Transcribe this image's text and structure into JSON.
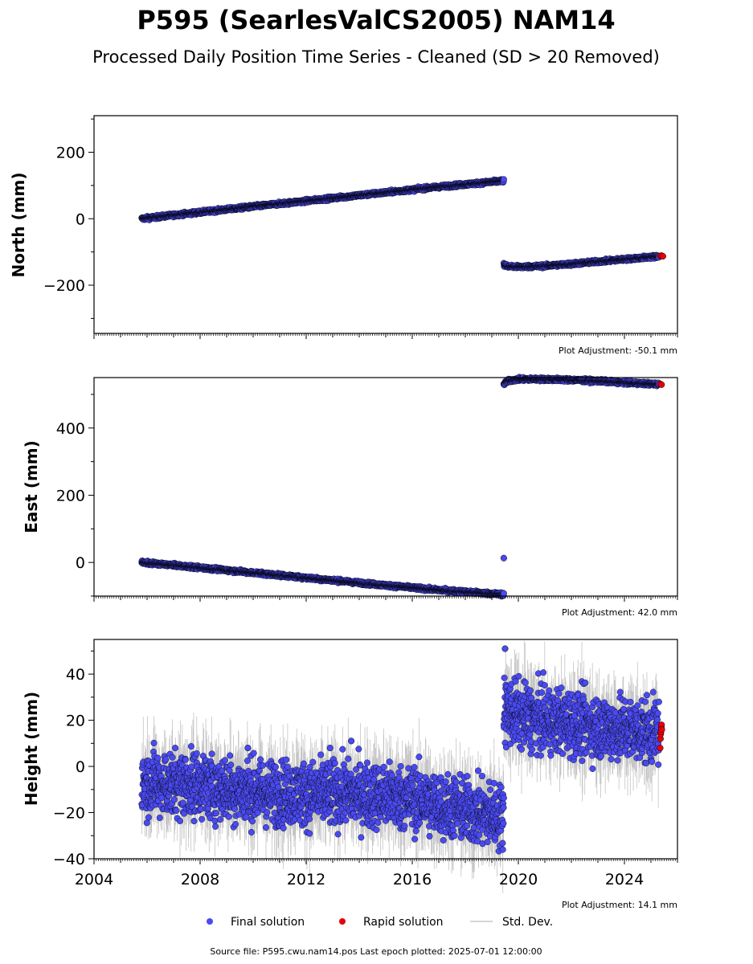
{
  "title": "P595 (SearlesValCS2005) NAM14",
  "subtitle": "Processed Daily Position Time Series - Cleaned (SD > 20 Removed)",
  "source_note": "Source file: P595.cwu.nam14.pos  Last epoch plotted: 2025-07-01 12:00:00",
  "legend": {
    "final": "Final solution",
    "rapid": "Rapid solution",
    "std": "Std. Dev."
  },
  "colors": {
    "final": "#4a4af0",
    "rapid": "#e8000b",
    "std": "#bdbdbd",
    "edge": "#000000"
  },
  "chart_data": [
    {
      "type": "scatter",
      "ylabel": "North (mm)",
      "adjustment": "Plot Adjustment: -50.1 mm",
      "xlim": [
        2004,
        2026
      ],
      "ylim": [
        -345,
        310
      ],
      "yticks": [
        -200,
        0,
        200
      ],
      "ytick_labels": [
        "−200",
        "0",
        "200"
      ],
      "grid": false,
      "show_x_tick_labels": false,
      "series": [
        {
          "role": "final",
          "segments": [
            {
              "x": [
                2005.8,
                2007,
                2009,
                2011,
                2013,
                2015,
                2017,
                2019.45
              ],
              "y": [
                0,
                11,
                28,
                45,
                62,
                79,
                96,
                114
              ]
            },
            {
              "x": [
                2019.45,
                2019.6,
                2020,
                2021,
                2022,
                2023,
                2024,
                2025.3
              ],
              "y": [
                -138,
                -143,
                -145,
                -142,
                -136,
                -129,
                -122,
                -113
              ]
            }
          ],
          "noise": 2.5
        },
        {
          "role": "rapid",
          "x": [
            2025.35,
            2025.4,
            2025.45
          ],
          "y": [
            -112,
            -111,
            -113
          ]
        }
      ]
    },
    {
      "type": "scatter",
      "ylabel": "East (mm)",
      "adjustment": "Plot Adjustment: 42.0 mm",
      "xlim": [
        2004,
        2026
      ],
      "ylim": [
        -100,
        550
      ],
      "yticks": [
        0,
        200,
        400
      ],
      "ytick_labels": [
        "0",
        "200",
        "400"
      ],
      "grid": false,
      "show_x_tick_labels": false,
      "series": [
        {
          "role": "final",
          "segments": [
            {
              "x": [
                2005.8,
                2007,
                2009,
                2011,
                2013,
                2015,
                2017,
                2019.45
              ],
              "y": [
                0,
                -8,
                -23,
                -38,
                -53,
                -68,
                -82,
                -95
              ]
            },
            {
              "x": [
                2019.45,
                2019.6,
                2020,
                2021,
                2022,
                2023,
                2024,
                2025.3
              ],
              "y": [
                530,
                540,
                545,
                545,
                543,
                540,
                535,
                530
              ]
            }
          ],
          "noise": 2.5
        },
        {
          "role": "final_extra",
          "x": [
            2019.45
          ],
          "y": [
            13
          ]
        },
        {
          "role": "rapid",
          "x": [
            2025.35,
            2025.4
          ],
          "y": [
            531,
            529
          ]
        }
      ]
    },
    {
      "type": "scatter",
      "ylabel": "Height (mm)",
      "adjustment": "Plot Adjustment: 14.1 mm",
      "xlim": [
        2004,
        2026
      ],
      "ylim": [
        -40,
        55
      ],
      "yticks": [
        -40,
        -20,
        0,
        20,
        40
      ],
      "ytick_labels": [
        "−40",
        "−20",
        "0",
        "20",
        "40"
      ],
      "xticks": [
        2004,
        2008,
        2012,
        2016,
        2020,
        2024
      ],
      "xtick_labels": [
        "2004",
        "2008",
        "2012",
        "2016",
        "2020",
        "2024"
      ],
      "grid": false,
      "show_x_tick_labels": true,
      "series": [
        {
          "role": "final",
          "segments": [
            {
              "x": [
                2005.8,
                2008,
                2010,
                2012,
                2014,
                2016,
                2018,
                2019.45
              ],
              "y": [
                -7,
                -8,
                -11,
                -12,
                -12,
                -14,
                -19,
                -22
              ]
            },
            {
              "x": [
                2019.45,
                2020,
                2021,
                2022,
                2023,
                2024,
                2025.3
              ],
              "y": [
                25,
                22,
                20,
                19,
                17,
                16,
                15
              ]
            }
          ],
          "noise": 7
        },
        {
          "role": "final_extra",
          "x": [
            2019.5,
            2013.7,
            2012.9,
            2009.8
          ],
          "y": [
            51,
            11,
            8,
            8
          ]
        },
        {
          "role": "rapid",
          "x": [
            2025.35,
            2025.36,
            2025.37,
            2025.38,
            2025.39,
            2025.4,
            2025.41
          ],
          "y": [
            8,
            12,
            14,
            15,
            17,
            18,
            16
          ]
        }
      ]
    }
  ]
}
